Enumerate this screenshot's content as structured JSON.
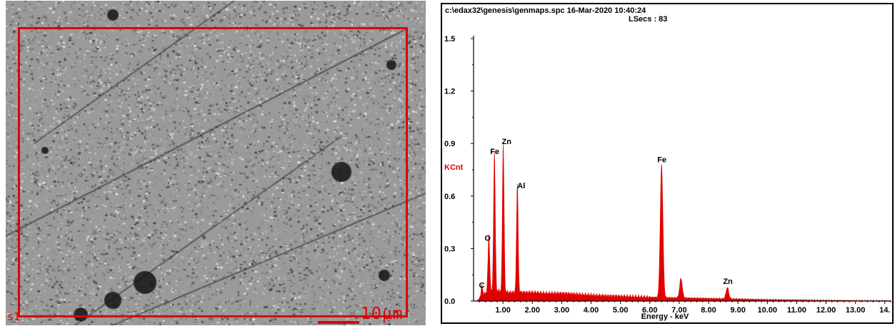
{
  "sem_image": {
    "label": "s1",
    "scale_label": "10µm",
    "colors": {
      "roi": "#e00000",
      "background": "#8e8e8e"
    }
  },
  "spectrum": {
    "header_line1": "c:\\edax32\\genesis\\genmaps.spc  16-Mar-2020 10:40:24",
    "header_line2": "LSecs :  83"
  },
  "chart_data": {
    "type": "line",
    "title": "",
    "xlabel": "Energy - keV",
    "ylabel": "KCnt",
    "xlim": [
      0,
      14.2
    ],
    "ylim": [
      0,
      1.5
    ],
    "x_ticks": [
      "1.00",
      "2.00",
      "3.00",
      "4.00",
      "5.00",
      "6.00",
      "7.00",
      "8.00",
      "9.00",
      "10.00",
      "11.00",
      "12.00",
      "13.00",
      "14."
    ],
    "y_ticks": [
      "0.0",
      "0.3",
      "0.6",
      "0.9",
      "1.2",
      "1.5"
    ],
    "color": "#e00000",
    "peaks": [
      {
        "element": "C",
        "energy_kev": 0.28,
        "kcnt": 0.06
      },
      {
        "element": "O",
        "energy_kev": 0.52,
        "kcnt": 0.32
      },
      {
        "element": "Fe",
        "energy_kev": 0.71,
        "kcnt": 0.79
      },
      {
        "element": "Zn",
        "energy_kev": 1.01,
        "kcnt": 0.84
      },
      {
        "element": "Al",
        "energy_kev": 1.49,
        "kcnt": 0.62
      },
      {
        "element": "Fe",
        "energy_kev": 6.4,
        "kcnt": 0.76
      },
      {
        "element": "",
        "energy_kev": 7.06,
        "kcnt": 0.11
      },
      {
        "element": "Zn",
        "energy_kev": 8.64,
        "kcnt": 0.065
      }
    ],
    "background": [
      [
        0.1,
        0.0
      ],
      [
        0.3,
        0.03
      ],
      [
        0.5,
        0.06
      ],
      [
        0.8,
        0.06
      ],
      [
        1.2,
        0.05
      ],
      [
        1.7,
        0.05
      ],
      [
        2.0,
        0.05
      ],
      [
        2.5,
        0.045
      ],
      [
        3.0,
        0.045
      ],
      [
        3.5,
        0.04
      ],
      [
        4.0,
        0.035
      ],
      [
        4.5,
        0.03
      ],
      [
        5.0,
        0.028
      ],
      [
        5.5,
        0.025
      ],
      [
        6.0,
        0.022
      ],
      [
        6.5,
        0.02
      ],
      [
        7.5,
        0.017
      ],
      [
        8.0,
        0.015
      ],
      [
        9.0,
        0.012
      ],
      [
        10.0,
        0.008
      ],
      [
        11.0,
        0.006
      ],
      [
        12.0,
        0.004
      ],
      [
        13.0,
        0.002
      ],
      [
        14.2,
        0.001
      ]
    ]
  }
}
